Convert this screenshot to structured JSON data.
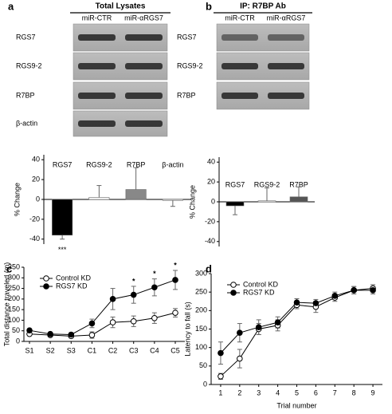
{
  "panel_labels": [
    "a",
    "b",
    "c",
    "d"
  ],
  "blots": [
    {
      "title": "Total Lysates",
      "columns": [
        "miR-CTR",
        "miR-αRGS7"
      ],
      "rows": [
        "RGS7",
        "RGS9-2",
        "R7BP",
        "β-actin"
      ]
    },
    {
      "title": "IP: R7BP Ab",
      "columns": [
        "miR-CTR",
        "miR-αRGS7"
      ],
      "rows": [
        "RGS7",
        "RGS9-2",
        "R7BP"
      ]
    }
  ],
  "chart_data": [
    {
      "type": "bar",
      "ylabel": "% Change",
      "categories": [
        "RGS7",
        "RGS9-2",
        "R7BP",
        "β-actin"
      ],
      "values": [
        -36,
        2,
        10,
        -1
      ],
      "errors": [
        4,
        12,
        22,
        6
      ],
      "colors": [
        "#000000",
        "#ffffff",
        "#888888",
        "#ffffff"
      ],
      "ylim": [
        -45,
        45
      ],
      "yticks": [
        -40,
        -20,
        0,
        20,
        40
      ],
      "annotations": [
        {
          "category": "RGS7",
          "text": "***"
        }
      ]
    },
    {
      "type": "bar",
      "ylabel": "% Change",
      "categories": [
        "RGS7",
        "RGS9-2",
        "R7BP"
      ],
      "values": [
        -4,
        1,
        5
      ],
      "errors": [
        9,
        13,
        10
      ],
      "colors": [
        "#000000",
        "#ffffff",
        "#555555"
      ],
      "ylim": [
        -45,
        45
      ],
      "yticks": [
        -40,
        -20,
        0,
        20,
        40
      ]
    },
    {
      "type": "line",
      "ylabel": "Total distance traveled (m)",
      "categories": [
        "S1",
        "S2",
        "S3",
        "C1",
        "C2",
        "C3",
        "C4",
        "C5"
      ],
      "series": [
        {
          "name": "Control KD",
          "color": "#000000",
          "marker_fill": "#ffffff",
          "values": [
            35,
            30,
            25,
            30,
            90,
            95,
            110,
            135
          ],
          "errors": [
            8,
            5,
            5,
            15,
            25,
            25,
            25,
            20
          ]
        },
        {
          "name": "RGS7 KD",
          "color": "#000000",
          "marker_fill": "#000000",
          "values": [
            52,
            35,
            32,
            85,
            200,
            220,
            255,
            290
          ],
          "errors": [
            8,
            5,
            5,
            20,
            50,
            40,
            40,
            45
          ]
        }
      ],
      "ylim": [
        0,
        350
      ],
      "yticks": [
        0,
        50,
        100,
        150,
        200,
        250,
        300,
        350
      ],
      "annotations": [
        {
          "category": "C3",
          "text": "*"
        },
        {
          "category": "C4",
          "text": "*"
        },
        {
          "category": "C5",
          "text": "*"
        }
      ]
    },
    {
      "type": "line",
      "xlabel": "Trial number",
      "ylabel": "Latency to fall (s)",
      "x": [
        1,
        2,
        3,
        4,
        5,
        6,
        7,
        8,
        9
      ],
      "series": [
        {
          "name": "Control KD",
          "color": "#000000",
          "marker_fill": "#ffffff",
          "values": [
            22,
            70,
            150,
            160,
            215,
            210,
            235,
            255,
            260
          ],
          "errors": [
            8,
            25,
            15,
            15,
            10,
            15,
            10,
            10,
            10
          ]
        },
        {
          "name": "RGS7 KD",
          "color": "#000000",
          "marker_fill": "#000000",
          "values": [
            85,
            140,
            155,
            168,
            222,
            220,
            240,
            255,
            255
          ],
          "errors": [
            30,
            25,
            20,
            15,
            10,
            10,
            10,
            10,
            10
          ]
        }
      ],
      "xlim": [
        0.5,
        9.5
      ],
      "xticks": [
        1,
        2,
        3,
        4,
        5,
        6,
        7,
        8,
        9
      ],
      "ylim": [
        0,
        300
      ],
      "yticks": [
        0,
        50,
        100,
        150,
        200,
        250,
        300
      ]
    }
  ]
}
